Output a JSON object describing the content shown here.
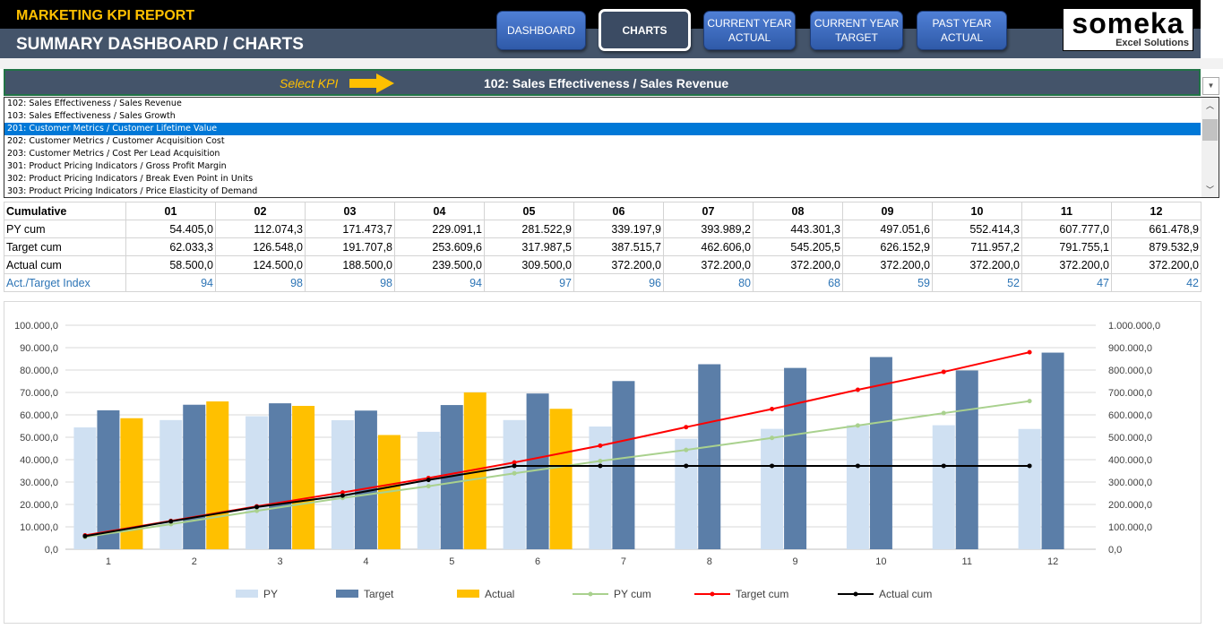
{
  "header": {
    "report_title": "MARKETING KPI REPORT",
    "page_title": "SUMMARY DASHBOARD / CHARTS",
    "nav": [
      {
        "label": "DASHBOARD",
        "active": false
      },
      {
        "label": "CHARTS",
        "active": true
      },
      {
        "label": "CURRENT YEAR ACTUAL",
        "active": false
      },
      {
        "label": "CURRENT YEAR TARGET",
        "active": false
      },
      {
        "label": "PAST YEAR ACTUAL",
        "active": false
      }
    ],
    "logo": {
      "name": "someka",
      "tagline": "Excel Solutions"
    }
  },
  "kpi_selector": {
    "label": "Select KPI",
    "value": "102: Sales Effectiveness / Sales Revenue",
    "options": [
      "102: Sales Effectiveness / Sales Revenue",
      "103: Sales Effectiveness / Sales Growth",
      "201: Customer Metrics / Customer Lifetime Value",
      "202: Customer Metrics / Customer Acquisition Cost",
      "203: Customer Metrics / Cost Per Lead Acquisition",
      "301: Product Pricing Indicators / Gross Profit Margin",
      "302: Product Pricing Indicators / Break Even Point in Units",
      "303: Product Pricing Indicators / Price Elasticity of Demand"
    ],
    "highlighted_index": 2
  },
  "table": {
    "header": [
      "Cumulative",
      "01",
      "02",
      "03",
      "04",
      "05",
      "06",
      "07",
      "08",
      "09",
      "10",
      "11",
      "12"
    ],
    "rows": [
      [
        "PY cum",
        "54.405,0",
        "112.074,3",
        "171.473,7",
        "229.091,1",
        "281.522,9",
        "339.197,9",
        "393.989,2",
        "443.301,3",
        "497.051,6",
        "552.414,3",
        "607.777,0",
        "661.478,9"
      ],
      [
        "Target cum",
        "62.033,3",
        "126.548,0",
        "191.707,8",
        "253.609,6",
        "317.987,5",
        "387.515,7",
        "462.606,0",
        "545.205,5",
        "626.152,9",
        "711.957,2",
        "791.755,1",
        "879.532,9"
      ],
      [
        "Actual cum",
        "58.500,0",
        "124.500,0",
        "188.500,0",
        "239.500,0",
        "309.500,0",
        "372.200,0",
        "372.200,0",
        "372.200,0",
        "372.200,0",
        "372.200,0",
        "372.200,0",
        "372.200,0"
      ],
      [
        "Act./Target Index",
        "94",
        "98",
        "98",
        "94",
        "97",
        "96",
        "80",
        "68",
        "59",
        "52",
        "47",
        "42"
      ]
    ]
  },
  "chart_data": {
    "type": "bar",
    "categories": [
      "1",
      "2",
      "3",
      "4",
      "5",
      "6",
      "7",
      "8",
      "9",
      "10",
      "11",
      "12"
    ],
    "y_left": {
      "range": [
        0,
        100000
      ],
      "ticks": [
        "0,0",
        "10.000,0",
        "20.000,0",
        "30.000,0",
        "40.000,0",
        "50.000,0",
        "60.000,0",
        "70.000,0",
        "80.000,0",
        "90.000,0",
        "100.000,0"
      ]
    },
    "y_right": {
      "range": [
        0,
        1000000
      ],
      "ticks": [
        "0,0",
        "100.000,0",
        "200.000,0",
        "300.000,0",
        "400.000,0",
        "500.000,0",
        "600.000,0",
        "700.000,0",
        "800.000,0",
        "900.000,0",
        "1.000.000,0"
      ]
    },
    "grid": true,
    "legend": "bottom",
    "series": [
      {
        "name": "PY",
        "kind": "bar",
        "axis": "left",
        "color": "#cfe0f2",
        "values": [
          54405,
          57669,
          59400,
          57617,
          52432,
          57675,
          54791,
          49312,
          53750,
          55363,
          55363,
          53702
        ]
      },
      {
        "name": "Target",
        "kind": "bar",
        "axis": "left",
        "color": "#5b7ea8",
        "values": [
          62033,
          64515,
          65160,
          61902,
          64378,
          69528,
          75090,
          82600,
          80947,
          85804,
          79798,
          87778
        ]
      },
      {
        "name": "Actual",
        "kind": "bar",
        "axis": "left",
        "color": "#ffc000",
        "values": [
          58500,
          66000,
          64000,
          51000,
          70000,
          62700,
          0,
          0,
          0,
          0,
          0,
          0
        ]
      },
      {
        "name": "PY cum",
        "kind": "line",
        "axis": "right",
        "color": "#a9d18e",
        "values": [
          54405,
          112074,
          171474,
          229091,
          281523,
          339198,
          393989,
          443301,
          497052,
          552414,
          607777,
          661479
        ]
      },
      {
        "name": "Target cum",
        "kind": "line",
        "axis": "right",
        "color": "#ff0000",
        "values": [
          62033,
          126548,
          191708,
          253610,
          317988,
          387516,
          462606,
          545206,
          626153,
          711957,
          791755,
          879533
        ]
      },
      {
        "name": "Actual cum",
        "kind": "line",
        "axis": "right",
        "color": "#000000",
        "values": [
          58500,
          124500,
          188500,
          239500,
          309500,
          372200,
          372200,
          372200,
          372200,
          372200,
          372200,
          372200
        ]
      }
    ]
  }
}
